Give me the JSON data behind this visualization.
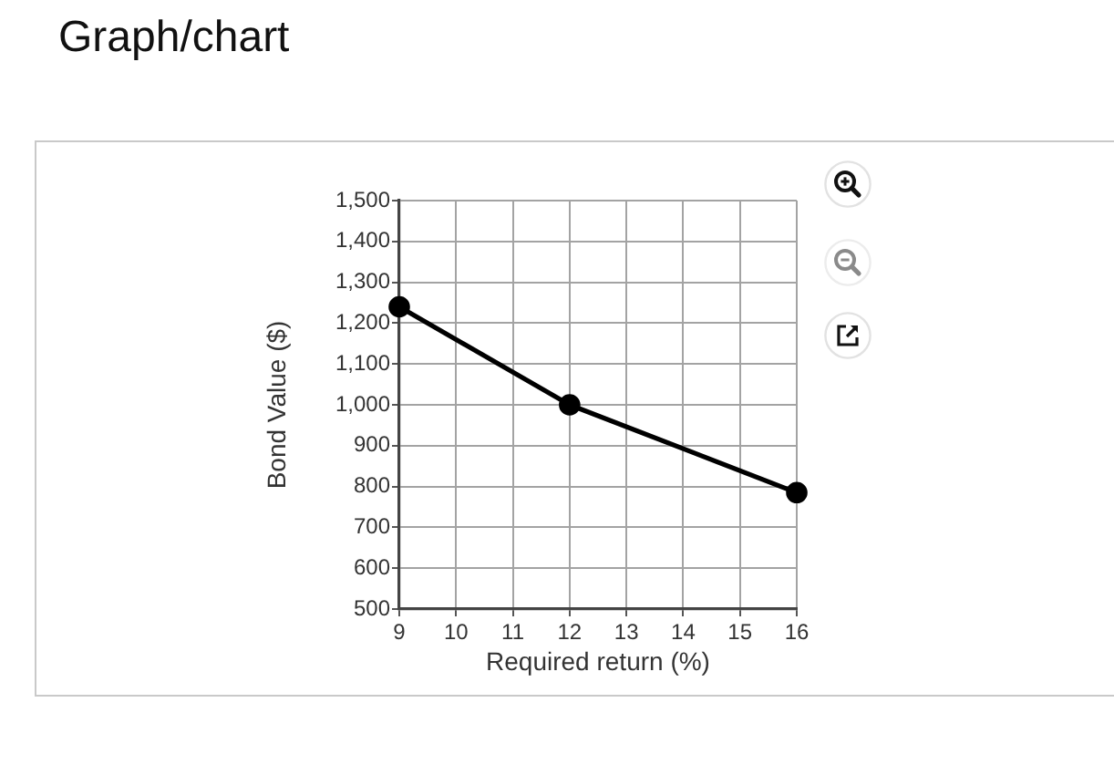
{
  "chart_data": {
    "type": "line",
    "title": "Graph/chart",
    "xlabel": "Required return (%)",
    "ylabel": "Bond Value ($)",
    "x": [
      9,
      12,
      16
    ],
    "values": [
      1240,
      1000,
      785
    ],
    "color": "#000000",
    "xlim": [
      9,
      16
    ],
    "xticks": [
      9,
      10,
      11,
      12,
      13,
      14,
      15,
      16
    ],
    "ylim": [
      500,
      1500
    ],
    "yticks": [
      500,
      600,
      700,
      800,
      900,
      {
        "value": 1000,
        "label": "1,000"
      },
      {
        "value": 1100,
        "label": "1,100"
      },
      {
        "value": 1200,
        "label": "1,200"
      },
      {
        "value": 1300,
        "label": "1,300"
      },
      {
        "value": 1400,
        "label": "1,400"
      },
      {
        "value": 1500,
        "label": "1,500"
      }
    ],
    "grid": true,
    "marker": "circle",
    "line_style": "solid"
  }
}
